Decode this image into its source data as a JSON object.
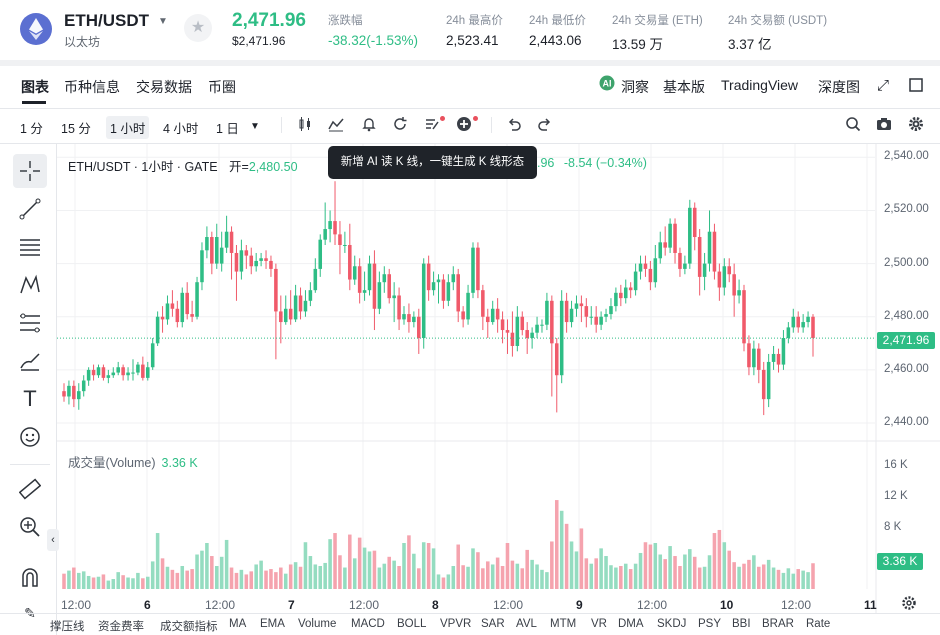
{
  "header": {
    "pair": "ETH/USDT",
    "coin_name": "以太坊",
    "last_price": "2,471.96",
    "last_price_usd": "$2,471.96",
    "stats": [
      {
        "label": "涨跌幅",
        "value": "-38.32(-1.53%)",
        "color": "#2ebd85"
      },
      {
        "label": "24h 最高价",
        "value": "2,523.41"
      },
      {
        "label": "24h 最低价",
        "value": "2,443.06"
      },
      {
        "label": "24h 交易量 (ETH)",
        "value": "13.59 万"
      },
      {
        "label": "24h 交易额 (USDT)",
        "value": "3.37 亿"
      }
    ]
  },
  "tabs": [
    "图表",
    "币种信息",
    "交易数据",
    "币圈"
  ],
  "right_tabs": {
    "insight": "洞察",
    "basic": "基本版",
    "tradingview": "TradingView",
    "depth": "深度图"
  },
  "timeframes": [
    "1 分",
    "15 分",
    "1 小时",
    "4 小时",
    "1 日"
  ],
  "selected_timeframe": "1 小时",
  "legend": {
    "title": "ETH/USDT · 1小时 · GATE",
    "open_label": "开=",
    "open_value": "2,480.50",
    "partial_value": ".96",
    "change": "-8.54 (−0.34%)"
  },
  "tooltip": "新增 AI 读 K 线，一键生成 K 线形态",
  "volume_legend": {
    "label": "成交量(Volume)",
    "value": "3.36 K"
  },
  "price_tag": "2,471.96",
  "volume_tag": "3.36 K",
  "indicators": [
    "撑压线",
    "资金费率",
    "成交额指标",
    "MA",
    "EMA",
    "Volume",
    "MACD",
    "BOLL",
    "VPVR",
    "SAR",
    "AVL",
    "MTM",
    "VR",
    "DMA",
    "SKDJ",
    "PSY",
    "BBI",
    "BRAR",
    "Rate"
  ],
  "colors": {
    "up": "#2ebd85",
    "down": "#f05a6a",
    "up_vol": "#94dcc0",
    "down_vol": "#f5a3ae"
  },
  "chart_data": {
    "type": "candlestick",
    "y_axis": {
      "ticks": [
        2540,
        2520,
        2500,
        2480,
        2460,
        2440
      ],
      "tick_labels": [
        "2,540.00",
        "2,520.00",
        "2,500.00",
        "2,480.00",
        "2,460.00",
        "2,440.00"
      ],
      "range": [
        2434,
        2545
      ]
    },
    "volume_axis": {
      "tick_labels": [
        "16 K",
        "12 K",
        "8 K"
      ],
      "ticks": [
        16,
        12,
        8
      ],
      "range": [
        0,
        18
      ]
    },
    "x_axis": {
      "labels": [
        "12:00",
        "6",
        "12:00",
        "7",
        "12:00",
        "8",
        "12:00",
        "9",
        "12:00",
        "10",
        "12:00",
        "11"
      ]
    },
    "last_close": 2471.96,
    "current_volume_k": 3.36,
    "note_values_estimated": true,
    "candles": [
      [
        2452,
        2450,
        2455,
        2448,
        2.0
      ],
      [
        2450,
        2454,
        2456,
        2447,
        2.4
      ],
      [
        2454,
        2449,
        2456,
        2446,
        2.8
      ],
      [
        2449,
        2452,
        2455,
        2445,
        2.1
      ],
      [
        2452,
        2456,
        2458,
        2450,
        2.3
      ],
      [
        2456,
        2460,
        2461,
        2454,
        1.7
      ],
      [
        2460,
        2458,
        2462,
        2456,
        1.5
      ],
      [
        2458,
        2461,
        2462,
        2457,
        1.6
      ],
      [
        2461,
        2457,
        2462,
        2456,
        1.9
      ],
      [
        2457,
        2458,
        2460,
        2455,
        1.1
      ],
      [
        2458,
        2459,
        2461,
        2457,
        1.3
      ],
      [
        2459,
        2461,
        2463,
        2458,
        2.2
      ],
      [
        2461,
        2458,
        2462,
        2456,
        1.8
      ],
      [
        2458,
        2459,
        2461,
        2456,
        1.5
      ],
      [
        2459,
        2459,
        2464,
        2456,
        1.4
      ],
      [
        2459,
        2462,
        2463,
        2458,
        2.1
      ],
      [
        2462,
        2457,
        2465,
        2456,
        1.4
      ],
      [
        2457,
        2461,
        2463,
        2456,
        1.6
      ],
      [
        2461,
        2470,
        2472,
        2460,
        3.6
      ],
      [
        2470,
        2480,
        2482,
        2469,
        7.3
      ],
      [
        2480,
        2479,
        2484,
        2474,
        4.0
      ],
      [
        2479,
        2485,
        2488,
        2477,
        2.9
      ],
      [
        2485,
        2483,
        2490,
        2480,
        2.5
      ],
      [
        2483,
        2478,
        2486,
        2476,
        2.1
      ],
      [
        2478,
        2489,
        2491,
        2476,
        3.0
      ],
      [
        2489,
        2481,
        2493,
        2479,
        2.4
      ],
      [
        2481,
        2480,
        2486,
        2478,
        2.6
      ],
      [
        2480,
        2493,
        2495,
        2479,
        4.5
      ],
      [
        2493,
        2505,
        2508,
        2490,
        5.0
      ],
      [
        2505,
        2510,
        2514,
        2502,
        6.0
      ],
      [
        2510,
        2500,
        2512,
        2496,
        4.3
      ],
      [
        2500,
        2510,
        2515,
        2498,
        3.0
      ],
      [
        2500,
        2506,
        2512,
        2497,
        4.2
      ],
      [
        2506,
        2512,
        2518,
        2504,
        6.4
      ],
      [
        2512,
        2504,
        2514,
        2494,
        2.8
      ],
      [
        2504,
        2497,
        2507,
        2486,
        2.1
      ],
      [
        2497,
        2505,
        2509,
        2494,
        2.5
      ],
      [
        2505,
        2503,
        2507,
        2498,
        1.9
      ],
      [
        2503,
        2499,
        2506,
        2496,
        2.3
      ],
      [
        2499,
        2501,
        2504,
        2497,
        3.2
      ],
      [
        2501,
        2502,
        2504,
        2499,
        3.7
      ],
      [
        2502,
        2501,
        2505,
        2498,
        2.4
      ],
      [
        2501,
        2498,
        2503,
        2495,
        2.6
      ],
      [
        2498,
        2482,
        2500,
        2464,
        2.2
      ],
      [
        2482,
        2478,
        2488,
        2470,
        2.8
      ],
      [
        2478,
        2483,
        2488,
        2477,
        2.0
      ],
      [
        2483,
        2479,
        2490,
        2477,
        3.2
      ],
      [
        2479,
        2488,
        2492,
        2478,
        3.5
      ],
      [
        2488,
        2482,
        2491,
        2479,
        2.9
      ],
      [
        2482,
        2486,
        2490,
        2480,
        6.1
      ],
      [
        2486,
        2490,
        2493,
        2484,
        4.3
      ],
      [
        2490,
        2498,
        2502,
        2489,
        3.2
      ],
      [
        2498,
        2509,
        2511,
        2495,
        3.0
      ],
      [
        2509,
        2513,
        2523,
        2507,
        3.4
      ],
      [
        2513,
        2516,
        2520,
        2508,
        6.5
      ],
      [
        2516,
        2511,
        2531,
        2507,
        7.3
      ],
      [
        2511,
        2507,
        2516,
        2496,
        4.4
      ],
      [
        2507,
        2507,
        2512,
        2504,
        2.8
      ],
      [
        2507,
        2494,
        2515,
        2490,
        7.1
      ],
      [
        2494,
        2499,
        2503,
        2492,
        4.0
      ],
      [
        2499,
        2489,
        2502,
        2485,
        6.7
      ],
      [
        2489,
        2490,
        2497,
        2486,
        5.4
      ],
      [
        2490,
        2500,
        2503,
        2488,
        4.9
      ],
      [
        2500,
        2483,
        2505,
        2475,
        5.0
      ],
      [
        2483,
        2493,
        2497,
        2481,
        2.8
      ],
      [
        2493,
        2496,
        2499,
        2489,
        3.3
      ],
      [
        2496,
        2487,
        2498,
        2485,
        4.2
      ],
      [
        2487,
        2488,
        2493,
        2478,
        3.7
      ],
      [
        2488,
        2479,
        2491,
        2475,
        3.0
      ],
      [
        2479,
        2481,
        2484,
        2477,
        6.0
      ],
      [
        2481,
        2478,
        2485,
        2474,
        7.0
      ],
      [
        2478,
        2480,
        2482,
        2476,
        4.6
      ],
      [
        2480,
        2472,
        2483,
        2466,
        2.7
      ],
      [
        2472,
        2500,
        2502,
        2468,
        6.1
      ],
      [
        2500,
        2490,
        2503,
        2486,
        6.0
      ],
      [
        2490,
        2493,
        2497,
        2488,
        5.3
      ],
      [
        2493,
        2494,
        2496,
        2485,
        1.9
      ],
      [
        2494,
        2486,
        2496,
        2483,
        1.5
      ],
      [
        2486,
        2493,
        2496,
        2484,
        1.9
      ],
      [
        2493,
        2496,
        2499,
        2490,
        3.0
      ],
      [
        2496,
        2482,
        2498,
        2478,
        5.8
      ],
      [
        2482,
        2479,
        2484,
        2476,
        3.1
      ],
      [
        2479,
        2489,
        2492,
        2477,
        2.9
      ],
      [
        2489,
        2506,
        2508,
        2487,
        5.3
      ],
      [
        2506,
        2490,
        2508,
        2487,
        4.8
      ],
      [
        2490,
        2480,
        2492,
        2475,
        2.7
      ],
      [
        2480,
        2478,
        2483,
        2472,
        3.6
      ],
      [
        2478,
        2483,
        2486,
        2477,
        3.2
      ],
      [
        2483,
        2479,
        2487,
        2474,
        4.1
      ],
      [
        2479,
        2475,
        2482,
        2470,
        3.0
      ],
      [
        2475,
        2474,
        2479,
        2466,
        6.0
      ],
      [
        2474,
        2469,
        2482,
        2465,
        3.7
      ],
      [
        2469,
        2480,
        2484,
        2467,
        3.3
      ],
      [
        2480,
        2475,
        2482,
        2473,
        2.7
      ],
      [
        2475,
        2472,
        2478,
        2466,
        5.1
      ],
      [
        2472,
        2474,
        2476,
        2468,
        3.8
      ],
      [
        2474,
        2477,
        2480,
        2472,
        3.2
      ],
      [
        2477,
        2477,
        2479,
        2474,
        2.5
      ],
      [
        2477,
        2486,
        2489,
        2475,
        2.2
      ],
      [
        2486,
        2470,
        2488,
        2450,
        6.2
      ],
      [
        2470,
        2458,
        2472,
        2444,
        11.6
      ],
      [
        2458,
        2486,
        2490,
        2455,
        10.2
      ],
      [
        2486,
        2478,
        2489,
        2474,
        8.5
      ],
      [
        2478,
        2483,
        2486,
        2476,
        6.2
      ],
      [
        2483,
        2485,
        2488,
        2480,
        4.9
      ],
      [
        2485,
        2484,
        2488,
        2478,
        7.9
      ],
      [
        2484,
        2480,
        2487,
        2476,
        4.0
      ],
      [
        2480,
        2480,
        2484,
        2477,
        3.3
      ],
      [
        2480,
        2477,
        2484,
        2474,
        4.0
      ],
      [
        2477,
        2480,
        2482,
        2475,
        5.3
      ],
      [
        2480,
        2481,
        2483,
        2478,
        4.3
      ],
      [
        2481,
        2484,
        2487,
        2479,
        3.1
      ],
      [
        2484,
        2489,
        2491,
        2482,
        2.8
      ],
      [
        2489,
        2487,
        2492,
        2484,
        3.0
      ],
      [
        2487,
        2491,
        2494,
        2485,
        3.3
      ],
      [
        2491,
        2490,
        2493,
        2487,
        2.6
      ],
      [
        2490,
        2497,
        2500,
        2488,
        3.3
      ],
      [
        2497,
        2500,
        2503,
        2494,
        4.7
      ],
      [
        2500,
        2498,
        2503,
        2495,
        6.1
      ],
      [
        2498,
        2493,
        2501,
        2490,
        5.8
      ],
      [
        2493,
        2502,
        2507,
        2491,
        6.0
      ],
      [
        2502,
        2508,
        2512,
        2500,
        4.5
      ],
      [
        2508,
        2506,
        2514,
        2503,
        3.9
      ],
      [
        2506,
        2515,
        2517,
        2504,
        5.6
      ],
      [
        2515,
        2504,
        2517,
        2500,
        4.3
      ],
      [
        2504,
        2498,
        2506,
        2495,
        3.0
      ],
      [
        2498,
        2500,
        2503,
        2496,
        4.5
      ],
      [
        2500,
        2521,
        2524,
        2498,
        5.2
      ],
      [
        2521,
        2510,
        2523,
        2505,
        4.2
      ],
      [
        2510,
        2495,
        2513,
        2488,
        2.8
      ],
      [
        2495,
        2500,
        2504,
        2490,
        2.9
      ],
      [
        2500,
        2512,
        2520,
        2497,
        4.4
      ],
      [
        2512,
        2497,
        2515,
        2494,
        7.3
      ],
      [
        2497,
        2491,
        2500,
        2486,
        7.7
      ],
      [
        2491,
        2499,
        2502,
        2488,
        6.1
      ],
      [
        2499,
        2496,
        2502,
        2493,
        5.0
      ],
      [
        2496,
        2488,
        2500,
        2480,
        3.5
      ],
      [
        2488,
        2490,
        2494,
        2485,
        2.9
      ],
      [
        2490,
        2470,
        2492,
        2467,
        3.3
      ],
      [
        2470,
        2461,
        2473,
        2458,
        3.8
      ],
      [
        2461,
        2468,
        2471,
        2458,
        4.4
      ],
      [
        2468,
        2460,
        2470,
        2455,
        2.9
      ],
      [
        2460,
        2449,
        2463,
        2443,
        3.2
      ],
      [
        2449,
        2463,
        2466,
        2446,
        3.8
      ],
      [
        2463,
        2466,
        2469,
        2460,
        2.8
      ],
      [
        2466,
        2462,
        2468,
        2459,
        2.5
      ],
      [
        2462,
        2472,
        2475,
        2460,
        2.1
      ],
      [
        2472,
        2476,
        2478,
        2470,
        2.7
      ],
      [
        2476,
        2480,
        2483,
        2474,
        2.0
      ],
      [
        2480,
        2476,
        2482,
        2474,
        2.6
      ],
      [
        2476,
        2478,
        2481,
        2474,
        2.4
      ],
      [
        2478,
        2480,
        2482,
        2476,
        2.2
      ],
      [
        2480,
        2472,
        2481,
        2465,
        3.36
      ]
    ]
  }
}
